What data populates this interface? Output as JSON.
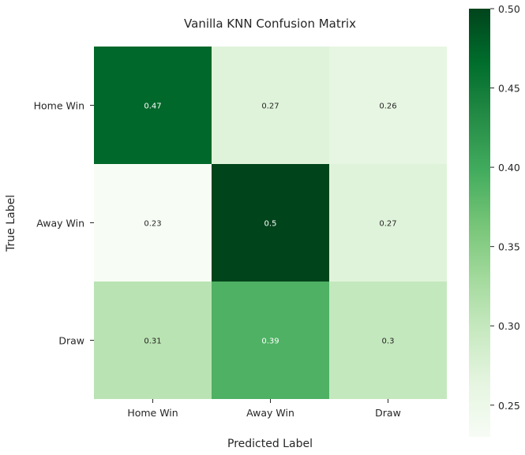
{
  "chart_data": {
    "type": "heatmap",
    "title": "Vanilla KNN Confusion Matrix",
    "xlabel": "Predicted Label",
    "ylabel": "True Label",
    "x_categories": [
      "Home Win",
      "Away Win",
      "Draw"
    ],
    "y_categories": [
      "Home Win",
      "Away Win",
      "Draw"
    ],
    "values": [
      [
        0.47,
        0.27,
        0.26
      ],
      [
        0.23,
        0.5,
        0.27
      ],
      [
        0.31,
        0.39,
        0.3
      ]
    ],
    "value_labels": [
      [
        "0.47",
        "0.27",
        "0.26"
      ],
      [
        "0.23",
        "0.5",
        "0.27"
      ],
      [
        "0.31",
        "0.39",
        "0.3"
      ]
    ],
    "colormap": "Greens",
    "colorbar": {
      "range": [
        0.23,
        0.5
      ],
      "ticks": [
        0.25,
        0.3,
        0.35,
        0.4,
        0.45,
        0.5
      ],
      "tick_labels": [
        "0.25",
        "0.30",
        "0.35",
        "0.40",
        "0.45",
        "0.50"
      ]
    },
    "colors": {
      "low": "#f7fcf5",
      "high": "#00441b",
      "text_dark": "#262626",
      "text_light": "#ffffff"
    }
  }
}
